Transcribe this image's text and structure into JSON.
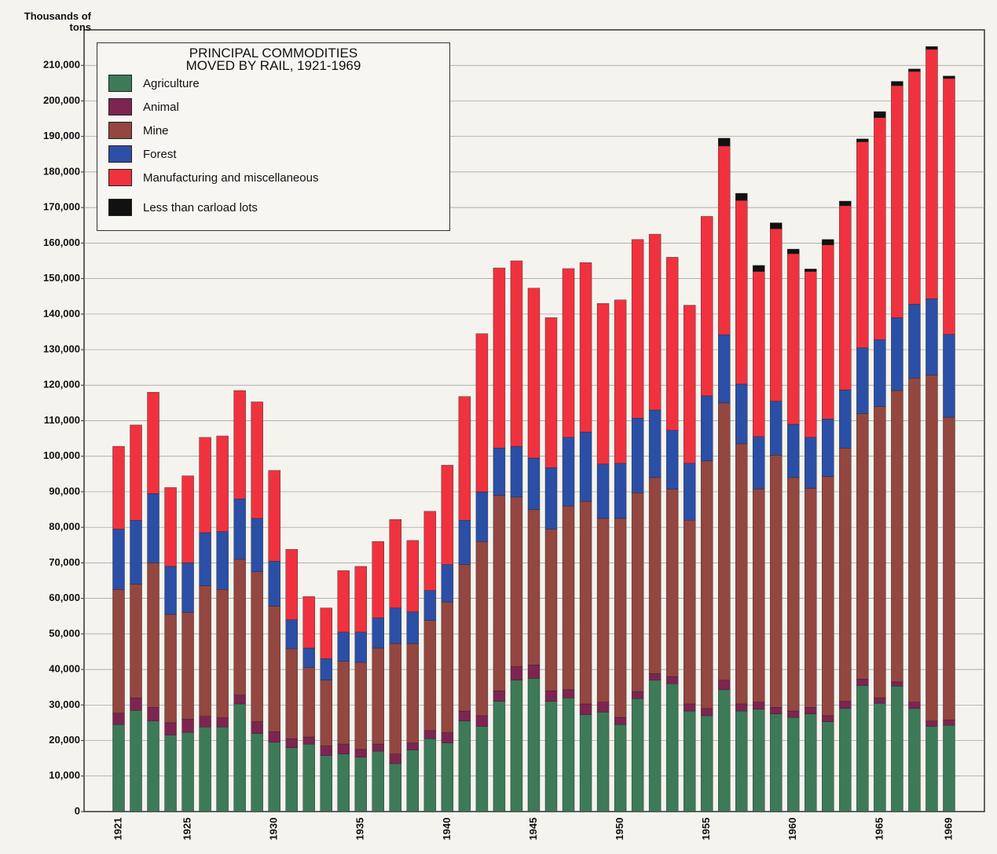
{
  "chart_data": {
    "type": "stacked_bar",
    "title": "PRINCIPAL COMMODITIES MOVED BY RAIL, 1921-1969",
    "y_label": "Thousands of tons",
    "categories": [
      "1921",
      null,
      null,
      null,
      "1925",
      null,
      null,
      null,
      null,
      "1930",
      null,
      null,
      null,
      null,
      "1935",
      null,
      null,
      null,
      null,
      "1940",
      null,
      null,
      null,
      null,
      "1945",
      null,
      null,
      null,
      null,
      "1950",
      null,
      null,
      null,
      null,
      "1955",
      null,
      null,
      null,
      null,
      "1960",
      null,
      null,
      null,
      null,
      "1965",
      null,
      null,
      null,
      "1969"
    ],
    "ylim": [
      0,
      220000
    ],
    "yticks": [
      0,
      {
        "value": 10000,
        "label": "10,000"
      },
      {
        "value": 20000,
        "label": "20,000"
      },
      {
        "value": 30000,
        "label": "30,000"
      },
      {
        "value": 40000,
        "label": "40,000"
      },
      {
        "value": 50000,
        "label": "50,000"
      },
      {
        "value": 60000,
        "label": "60,000"
      },
      {
        "value": 70000,
        "label": "70,000"
      },
      {
        "value": 80000,
        "label": "80,000"
      },
      {
        "value": 90000,
        "label": "90,000"
      },
      {
        "value": 100000,
        "label": "100,000"
      },
      {
        "value": 110000,
        "label": "110,000"
      },
      {
        "value": 120000,
        "label": "120,000"
      },
      {
        "value": 130000,
        "label": "130,000"
      },
      {
        "value": 140000,
        "label": "140,000"
      },
      {
        "value": 150000,
        "label": "150,000"
      },
      {
        "value": 160000,
        "label": "160,000"
      },
      {
        "value": 170000,
        "label": "170,000"
      },
      {
        "value": 180000,
        "label": "180,000"
      },
      {
        "value": 190000,
        "label": "190,000"
      },
      {
        "value": 200000,
        "label": "200,000"
      },
      {
        "value": 210000,
        "label": "210,000"
      }
    ],
    "grid": true,
    "legend": "upper left",
    "series": [
      {
        "name": "Agriculture",
        "color": "#3d7a58",
        "values": [
          24500,
          28500,
          25500,
          21500,
          22300,
          23800,
          23800,
          30300,
          22000,
          19500,
          18000,
          19000,
          15800,
          16200,
          15300,
          17000,
          13500,
          17300,
          20500,
          19300,
          25500,
          24000,
          31000,
          37000,
          37500,
          31000,
          32000,
          27300,
          28000,
          24500,
          31800,
          37000,
          36000,
          28300,
          27000,
          34300,
          28300,
          28800,
          27500,
          26500,
          27500,
          25300,
          29000,
          35500,
          30500,
          35300,
          29000,
          24000,
          24300
        ]
      },
      {
        "name": "Animal",
        "color": "#7e2450",
        "values": [
          3200,
          3500,
          3800,
          3500,
          3700,
          3000,
          2600,
          2500,
          3300,
          3000,
          2500,
          2000,
          2700,
          2800,
          2200,
          2000,
          2700,
          2000,
          2300,
          2900,
          2800,
          3000,
          3000,
          3800,
          3800,
          3000,
          2300,
          3000,
          2800,
          2000,
          2000,
          1800,
          2000,
          2000,
          2000,
          2700,
          2000,
          2000,
          1800,
          1800,
          1800,
          1700,
          2000,
          1800,
          1500,
          1200,
          1800,
          1500,
          1500
        ]
      },
      {
        "name": "Mine",
        "color": "#944640",
        "values": [
          34800,
          32000,
          40700,
          30500,
          30000,
          36700,
          36100,
          38200,
          42200,
          35300,
          25300,
          19500,
          18500,
          23300,
          24500,
          27000,
          31100,
          28000,
          31000,
          36800,
          41200,
          49000,
          55000,
          47700,
          43700,
          45500,
          51700,
          57000,
          51700,
          56000,
          55900,
          55200,
          52700,
          51700,
          69700,
          78000,
          73200,
          60000,
          71000,
          65700,
          61700,
          67300,
          71300,
          74700,
          82000,
          82000,
          91200,
          97300,
          85200
        ]
      },
      {
        "name": "Forest",
        "color": "#2b4fa6",
        "values": [
          17000,
          18000,
          19500,
          13500,
          14000,
          15000,
          16300,
          17000,
          15000,
          12700,
          8200,
          5500,
          6000,
          8200,
          8500,
          8500,
          10000,
          8900,
          8400,
          10500,
          12500,
          14000,
          13300,
          14300,
          14500,
          17300,
          19300,
          19500,
          15300,
          15500,
          21000,
          19000,
          16600,
          16000,
          18300,
          19200,
          16800,
          14700,
          15200,
          15000,
          14300,
          16200,
          16400,
          18500,
          18800,
          20500,
          20800,
          21500,
          23300
        ]
      },
      {
        "name": "Manufacturing and miscellaneous",
        "color": "#f0323f",
        "values": [
          23300,
          26800,
          28500,
          22200,
          24500,
          26800,
          26900,
          30500,
          32800,
          25500,
          19800,
          14500,
          14300,
          17300,
          18500,
          21500,
          24900,
          20100,
          22300,
          28000,
          34800,
          44500,
          50700,
          52200,
          47800,
          42200,
          47500,
          47700,
          45200,
          46000,
          50300,
          49500,
          48700,
          44500,
          50500,
          53100,
          51700,
          46500,
          48500,
          48000,
          46700,
          49000,
          51800,
          58000,
          62500,
          65300,
          65500,
          70200,
          72000
        ]
      },
      {
        "name": "Less than carload lots",
        "color": "#111111",
        "values": [
          0,
          0,
          0,
          0,
          0,
          0,
          0,
          0,
          0,
          0,
          0,
          0,
          0,
          0,
          0,
          0,
          0,
          0,
          0,
          0,
          0,
          0,
          0,
          0,
          0,
          0,
          0,
          0,
          0,
          0,
          0,
          0,
          0,
          0,
          0,
          2200,
          2000,
          1700,
          1700,
          1300,
          700,
          1500,
          1300,
          800,
          1700,
          1200,
          700,
          800,
          700
        ]
      }
    ]
  }
}
